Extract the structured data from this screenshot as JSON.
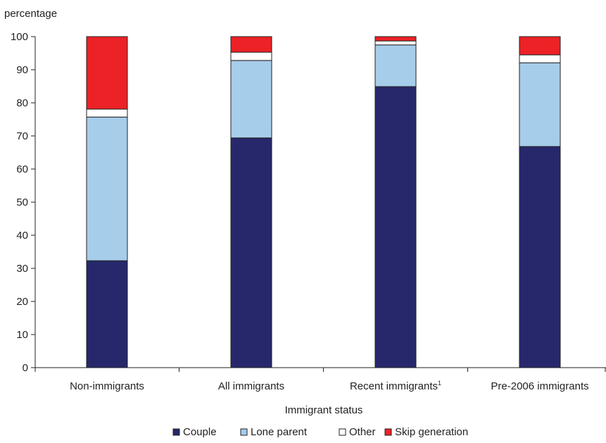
{
  "chart_data": {
    "type": "bar",
    "stacked": true,
    "ylabel": "percentage",
    "xlabel": "Immigrant status",
    "ylim": [
      0,
      100
    ],
    "yticks": [
      0,
      10,
      20,
      30,
      40,
      50,
      60,
      70,
      80,
      90,
      100
    ],
    "categories": [
      "Non-immigrants",
      "All immigrants",
      "Recent immigrants",
      "Pre-2006 immigrants"
    ],
    "category_footnote": [
      "",
      "",
      "1",
      ""
    ],
    "series": [
      {
        "name": "Couple",
        "color": "#27286b",
        "values": [
          32.3,
          69.4,
          84.9,
          66.8
        ]
      },
      {
        "name": "Lone parent",
        "color": "#a6cdea",
        "values": [
          43.4,
          23.4,
          12.6,
          25.3
        ]
      },
      {
        "name": "Other",
        "color": "#ffffff",
        "values": [
          2.4,
          2.5,
          1.2,
          2.4
        ]
      },
      {
        "name": "Skip generation",
        "color": "#ec2227",
        "values": [
          21.9,
          4.7,
          1.3,
          5.5
        ]
      }
    ],
    "legend_position": "bottom",
    "grid": false
  }
}
